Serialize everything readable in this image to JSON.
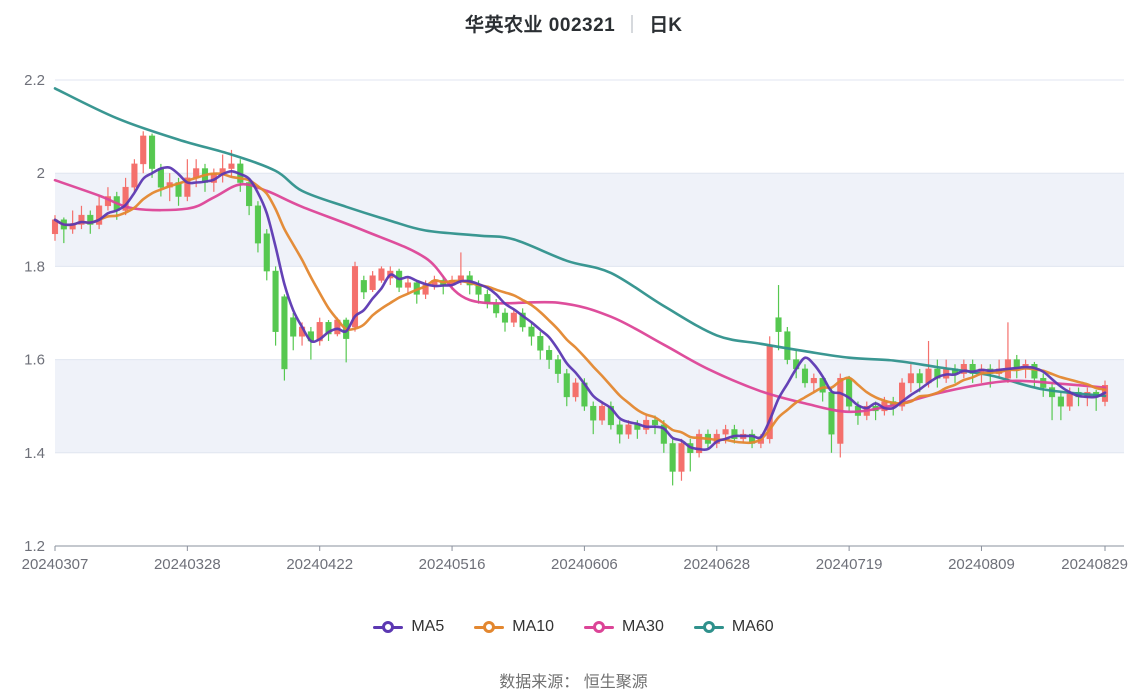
{
  "title": {
    "text": "华英农业 002321",
    "separator": "",
    "period": "日K"
  },
  "source_note": "数据来源： 恒生聚源",
  "chart_data": {
    "type": "candlestick",
    "stock_name": "华英农业",
    "stock_code": "002321",
    "period": "日K",
    "ylim": [
      1.2,
      2.2
    ],
    "y_ticks": [
      "2.2",
      "2",
      "1.8",
      "1.6",
      "1.4",
      "1.2"
    ],
    "shaded_bands": [
      [
        2.0,
        1.8
      ],
      [
        1.6,
        1.4
      ]
    ],
    "x_ticks": [
      {
        "index": 0,
        "label": "20240307"
      },
      {
        "index": 15,
        "label": "20240328"
      },
      {
        "index": 30,
        "label": "20240422"
      },
      {
        "index": 45,
        "label": "20240516"
      },
      {
        "index": 60,
        "label": "20240606"
      },
      {
        "index": 75,
        "label": "20240628"
      },
      {
        "index": 90,
        "label": "20240719"
      },
      {
        "index": 105,
        "label": "20240809"
      },
      {
        "index": 119,
        "label": "20240829"
      }
    ],
    "colors": {
      "up": "#f4706c",
      "down": "#56c850",
      "band": "#eff2f9",
      "grid": "#e0e6f0",
      "axis": "#8a909c",
      "tick_label": "#6e7079"
    },
    "candles": [
      [
        "20240307",
        1.87,
        1.91,
        1.855,
        1.9
      ],
      [
        "20240308",
        1.9,
        1.905,
        1.85,
        1.88
      ],
      [
        "20240311",
        1.88,
        1.92,
        1.87,
        1.89
      ],
      [
        "20240312",
        1.89,
        1.93,
        1.88,
        1.91
      ],
      [
        "20240313",
        1.91,
        1.92,
        1.87,
        1.89
      ],
      [
        "20240314",
        1.89,
        1.95,
        1.88,
        1.93
      ],
      [
        "20240315",
        1.93,
        1.97,
        1.92,
        1.95
      ],
      [
        "20240318",
        1.95,
        1.96,
        1.9,
        1.92
      ],
      [
        "20240319",
        1.92,
        1.99,
        1.91,
        1.97
      ],
      [
        "20240320",
        1.97,
        2.03,
        1.96,
        2.02
      ],
      [
        "20240321",
        2.02,
        2.09,
        2.0,
        2.08
      ],
      [
        "20240322",
        2.08,
        2.085,
        1.99,
        2.01
      ],
      [
        "20240325",
        2.01,
        2.02,
        1.95,
        1.97
      ],
      [
        "20240326",
        1.97,
        2.0,
        1.94,
        1.98
      ],
      [
        "20240327",
        1.98,
        1.99,
        1.93,
        1.95
      ],
      [
        "20240328",
        1.95,
        2.03,
        1.94,
        1.99
      ],
      [
        "20240329",
        1.99,
        2.03,
        1.97,
        2.01
      ],
      [
        "20240401",
        2.01,
        2.02,
        1.96,
        1.98
      ],
      [
        "20240402",
        1.98,
        2.01,
        1.96,
        2.0
      ],
      [
        "20240403",
        2.0,
        2.04,
        1.98,
        2.01
      ],
      [
        "20240408",
        2.01,
        2.05,
        1.99,
        2.02
      ],
      [
        "20240409",
        2.02,
        2.03,
        1.96,
        1.98
      ],
      [
        "20240410",
        1.98,
        1.99,
        1.91,
        1.93
      ],
      [
        "20240411",
        1.93,
        1.94,
        1.83,
        1.85
      ],
      [
        "20240412",
        1.87,
        1.88,
        1.77,
        1.79
      ],
      [
        "20240415",
        1.79,
        1.8,
        1.63,
        1.66
      ],
      [
        "20240416",
        1.735,
        1.74,
        1.555,
        1.58
      ],
      [
        "20240417",
        1.69,
        1.7,
        1.62,
        1.65
      ],
      [
        "20240418",
        1.65,
        1.68,
        1.63,
        1.67
      ],
      [
        "20240419",
        1.66,
        1.67,
        1.6,
        1.64
      ],
      [
        "20240422",
        1.64,
        1.69,
        1.63,
        1.68
      ],
      [
        "20240423",
        1.68,
        1.685,
        1.64,
        1.655
      ],
      [
        "20240424",
        1.655,
        1.69,
        1.65,
        1.685
      ],
      [
        "20240425",
        1.685,
        1.69,
        1.594,
        1.645
      ],
      [
        "20240426",
        1.67,
        1.81,
        1.66,
        1.8
      ],
      [
        "20240429",
        1.77,
        1.78,
        1.73,
        1.745
      ],
      [
        "20240430",
        1.75,
        1.79,
        1.745,
        1.78
      ],
      [
        "20240506",
        1.77,
        1.8,
        1.765,
        1.795
      ],
      [
        "20240507",
        1.775,
        1.8,
        1.76,
        1.79
      ],
      [
        "20240508",
        1.79,
        1.795,
        1.745,
        1.755
      ],
      [
        "20240509",
        1.755,
        1.775,
        1.74,
        1.765
      ],
      [
        "20240510",
        1.765,
        1.77,
        1.72,
        1.74
      ],
      [
        "20240513",
        1.74,
        1.77,
        1.73,
        1.76
      ],
      [
        "20240514",
        1.76,
        1.78,
        1.75,
        1.77
      ],
      [
        "20240515",
        1.77,
        1.78,
        1.74,
        1.76
      ],
      [
        "20240516",
        1.76,
        1.78,
        1.75,
        1.77
      ],
      [
        "20240517",
        1.77,
        1.83,
        1.76,
        1.78
      ],
      [
        "20240520",
        1.78,
        1.79,
        1.74,
        1.76
      ],
      [
        "20240521",
        1.76,
        1.77,
        1.72,
        1.74
      ],
      [
        "20240522",
        1.74,
        1.75,
        1.71,
        1.72
      ],
      [
        "20240523",
        1.72,
        1.73,
        1.69,
        1.7
      ],
      [
        "20240524",
        1.7,
        1.71,
        1.66,
        1.68
      ],
      [
        "20240527",
        1.68,
        1.71,
        1.67,
        1.7
      ],
      [
        "20240528",
        1.7,
        1.71,
        1.66,
        1.67
      ],
      [
        "20240529",
        1.67,
        1.68,
        1.63,
        1.65
      ],
      [
        "20240530",
        1.65,
        1.66,
        1.6,
        1.62
      ],
      [
        "20240531",
        1.62,
        1.63,
        1.58,
        1.6
      ],
      [
        "20240603",
        1.6,
        1.61,
        1.55,
        1.57
      ],
      [
        "20240604",
        1.57,
        1.58,
        1.5,
        1.52
      ],
      [
        "20240605",
        1.52,
        1.56,
        1.51,
        1.55
      ],
      [
        "20240606",
        1.55,
        1.56,
        1.49,
        1.5
      ],
      [
        "20240607",
        1.5,
        1.51,
        1.44,
        1.47
      ],
      [
        "20240611",
        1.47,
        1.51,
        1.46,
        1.5
      ],
      [
        "20240612",
        1.5,
        1.51,
        1.45,
        1.46
      ],
      [
        "20240613",
        1.46,
        1.47,
        1.42,
        1.44
      ],
      [
        "20240614",
        1.44,
        1.47,
        1.43,
        1.46
      ],
      [
        "20240617",
        1.46,
        1.47,
        1.43,
        1.45
      ],
      [
        "20240618",
        1.45,
        1.48,
        1.44,
        1.47
      ],
      [
        "20240619",
        1.47,
        1.48,
        1.44,
        1.46
      ],
      [
        "20240620",
        1.46,
        1.47,
        1.4,
        1.42
      ],
      [
        "20240621",
        1.42,
        1.43,
        1.33,
        1.36
      ],
      [
        "20240624",
        1.36,
        1.43,
        1.34,
        1.42
      ],
      [
        "20240625",
        1.42,
        1.43,
        1.36,
        1.4
      ],
      [
        "20240626",
        1.4,
        1.45,
        1.39,
        1.44
      ],
      [
        "20240627",
        1.44,
        1.45,
        1.41,
        1.42
      ],
      [
        "20240628",
        1.42,
        1.45,
        1.41,
        1.44
      ],
      [
        "20240701",
        1.44,
        1.46,
        1.42,
        1.45
      ],
      [
        "20240702",
        1.45,
        1.46,
        1.42,
        1.43
      ],
      [
        "20240703",
        1.43,
        1.45,
        1.42,
        1.44
      ],
      [
        "20240704",
        1.44,
        1.45,
        1.41,
        1.42
      ],
      [
        "20240705",
        1.42,
        1.44,
        1.41,
        1.43
      ],
      [
        "20240708",
        1.43,
        1.65,
        1.42,
        1.63
      ],
      [
        "20240709",
        1.69,
        1.76,
        1.62,
        1.66
      ],
      [
        "20240710",
        1.66,
        1.67,
        1.59,
        1.6
      ],
      [
        "20240711",
        1.6,
        1.62,
        1.56,
        1.58
      ],
      [
        "20240712",
        1.58,
        1.59,
        1.54,
        1.55
      ],
      [
        "20240715",
        1.55,
        1.57,
        1.53,
        1.56
      ],
      [
        "20240716",
        1.56,
        1.565,
        1.51,
        1.53
      ],
      [
        "20240717",
        1.53,
        1.54,
        1.4,
        1.44
      ],
      [
        "20240718",
        1.42,
        1.57,
        1.39,
        1.56
      ],
      [
        "20240719",
        1.56,
        1.565,
        1.49,
        1.5
      ],
      [
        "20240722",
        1.5,
        1.51,
        1.46,
        1.48
      ],
      [
        "20240723",
        1.48,
        1.51,
        1.47,
        1.5
      ],
      [
        "20240724",
        1.5,
        1.51,
        1.47,
        1.49
      ],
      [
        "20240725",
        1.49,
        1.52,
        1.48,
        1.51
      ],
      [
        "20240726",
        1.51,
        1.52,
        1.48,
        1.5
      ],
      [
        "20240729",
        1.5,
        1.56,
        1.49,
        1.55
      ],
      [
        "20240730",
        1.55,
        1.59,
        1.53,
        1.57
      ],
      [
        "20240731",
        1.57,
        1.58,
        1.53,
        1.55
      ],
      [
        "20240801",
        1.55,
        1.64,
        1.54,
        1.58
      ],
      [
        "20240802",
        1.58,
        1.6,
        1.54,
        1.56
      ],
      [
        "20240805",
        1.56,
        1.6,
        1.55,
        1.58
      ],
      [
        "20240806",
        1.58,
        1.59,
        1.55,
        1.57
      ],
      [
        "20240807",
        1.57,
        1.6,
        1.56,
        1.59
      ],
      [
        "20240808",
        1.59,
        1.6,
        1.55,
        1.57
      ],
      [
        "20240809",
        1.57,
        1.59,
        1.55,
        1.58
      ],
      [
        "20240812",
        1.58,
        1.59,
        1.54,
        1.57
      ],
      [
        "20240813",
        1.57,
        1.6,
        1.56,
        1.58
      ],
      [
        "20240814",
        1.56,
        1.68,
        1.55,
        1.6
      ],
      [
        "20240815",
        1.6,
        1.61,
        1.56,
        1.58
      ],
      [
        "20240816",
        1.58,
        1.6,
        1.56,
        1.59
      ],
      [
        "20240819",
        1.59,
        1.595,
        1.54,
        1.56
      ],
      [
        "20240820",
        1.56,
        1.57,
        1.52,
        1.54
      ],
      [
        "20240821",
        1.54,
        1.55,
        1.47,
        1.52
      ],
      [
        "20240822",
        1.52,
        1.53,
        1.47,
        1.5
      ],
      [
        "20240823",
        1.5,
        1.54,
        1.49,
        1.53
      ],
      [
        "20240826",
        1.53,
        1.54,
        1.5,
        1.52
      ],
      [
        "20240827",
        1.52,
        1.54,
        1.5,
        1.53
      ],
      [
        "20240828",
        1.53,
        1.535,
        1.49,
        1.52
      ],
      [
        "20240829",
        1.51,
        1.555,
        1.5,
        1.545
      ]
    ],
    "ma_series": [
      {
        "name": "MA5",
        "color": "#5c38b2",
        "window": 5
      },
      {
        "name": "MA10",
        "color": "#e3872f",
        "window": 10
      },
      {
        "name": "MA30",
        "color": "#dc4497",
        "keypoints": [
          [
            0,
            1.985
          ],
          [
            5,
            1.952
          ],
          [
            9,
            1.924
          ],
          [
            15,
            1.924
          ],
          [
            18,
            1.948
          ],
          [
            21,
            1.976
          ],
          [
            24,
            1.962
          ],
          [
            28,
            1.928
          ],
          [
            35,
            1.877
          ],
          [
            42,
            1.818
          ],
          [
            47,
            1.728
          ],
          [
            57,
            1.722
          ],
          [
            63,
            1.692
          ],
          [
            69,
            1.632
          ],
          [
            74,
            1.58
          ],
          [
            80,
            1.532
          ],
          [
            85,
            1.506
          ],
          [
            90,
            1.488
          ],
          [
            95,
            1.502
          ],
          [
            101,
            1.532
          ],
          [
            108,
            1.554
          ],
          [
            114,
            1.548
          ],
          [
            119,
            1.54
          ]
        ]
      },
      {
        "name": "MA60",
        "color": "#2f918c",
        "keypoints": [
          [
            0,
            2.182
          ],
          [
            7,
            2.118
          ],
          [
            14,
            2.072
          ],
          [
            20,
            2.04
          ],
          [
            25,
            2.005
          ],
          [
            28,
            1.962
          ],
          [
            33,
            1.928
          ],
          [
            38,
            1.898
          ],
          [
            42,
            1.877
          ],
          [
            48,
            1.866
          ],
          [
            52,
            1.858
          ],
          [
            58,
            1.812
          ],
          [
            63,
            1.786
          ],
          [
            69,
            1.715
          ],
          [
            75,
            1.652
          ],
          [
            80,
            1.634
          ],
          [
            85,
            1.618
          ],
          [
            90,
            1.604
          ],
          [
            95,
            1.598
          ],
          [
            100,
            1.584
          ],
          [
            106,
            1.566
          ],
          [
            112,
            1.536
          ],
          [
            119,
            1.522
          ]
        ]
      }
    ]
  }
}
